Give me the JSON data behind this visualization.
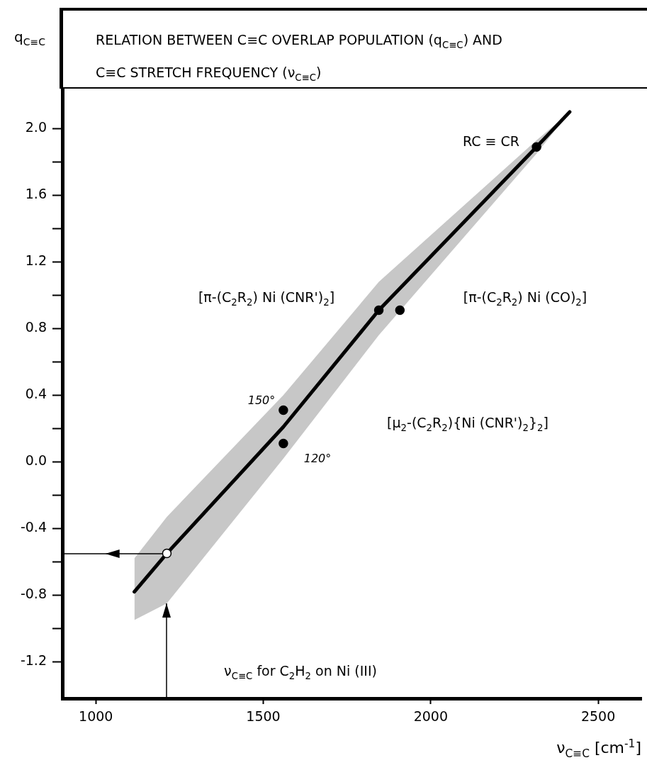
{
  "chart_data": {
    "type": "line",
    "title": "RELATION BETWEEN C≡C OVERLAP POPULATION (q$_{C≡C}$) AND C≡C STRETCH FREQUENCY (ν$_{C≡C}$)",
    "xlabel": "ν$_{C≡C}$ [cm$^{-1}$]",
    "ylabel": "q$_{C≡C}$",
    "xlim": [
      900,
      2630
    ],
    "xticks": [
      1000,
      1500,
      2000,
      2500
    ],
    "ylim": [
      -1.42,
      2.24
    ],
    "yticks": [
      -1.2,
      {
        "value": -1.0,
        "label": null
      },
      -0.8,
      {
        "value": -0.6,
        "label": null
      },
      -0.4,
      {
        "value": -0.2,
        "label": null
      },
      {
        "value": 0,
        "label": "0.0"
      },
      {
        "value": 0.2,
        "label": null
      },
      0.4,
      {
        "value": 0.6,
        "label": null
      },
      0.8,
      {
        "value": 1.0,
        "label": null
      },
      1.2,
      {
        "value": 1.4,
        "label": null
      },
      1.6,
      {
        "value": 1.8,
        "label": null
      },
      {
        "value": 2,
        "label": "2.0"
      }
    ],
    "grid": false,
    "legend": false,
    "series": [
      {
        "color": "#000000",
        "marker": "none",
        "x": [
          1115,
          1212,
          1560,
          1845,
          2316,
          2415
        ],
        "values": [
          -0.78,
          -0.55,
          0.21,
          0.91,
          1.89,
          2.1
        ],
        "lower": [
          -0.95,
          -0.85,
          0.02,
          0.76,
          1.85,
          2.1
        ],
        "upper": [
          -0.58,
          -0.33,
          0.4,
          1.08,
          1.93,
          2.1
        ]
      },
      {
        "type": "scatter",
        "color": "#000000",
        "marker": "circle",
        "x": [
          2316,
          1845,
          1908,
          1560,
          1560
        ],
        "values": [
          1.89,
          0.91,
          0.91,
          0.31,
          0.11
        ]
      },
      {
        "type": "scatter",
        "color": "#ffffff",
        "marker": "circle",
        "x": [
          1212
        ],
        "values": [
          -0.55
        ]
      }
    ],
    "annotations": [
      "RC ≡ CR",
      "[π-(C$_{2}$R$_{2}$) Ni (CNR')$_{2}$]",
      "[π-(C$_{2}$R$_{2}$) Ni (CO)$_{2}$]",
      "[μ$_{2}$-(C$_{2}$R$_{2}$){Ni (CNR')$_{2}$}$_{2}$]",
      "150°",
      "120°",
      "ν$_{C≡C}$ for C$_{2}$H$_{2}$ on Ni (III)"
    ]
  }
}
